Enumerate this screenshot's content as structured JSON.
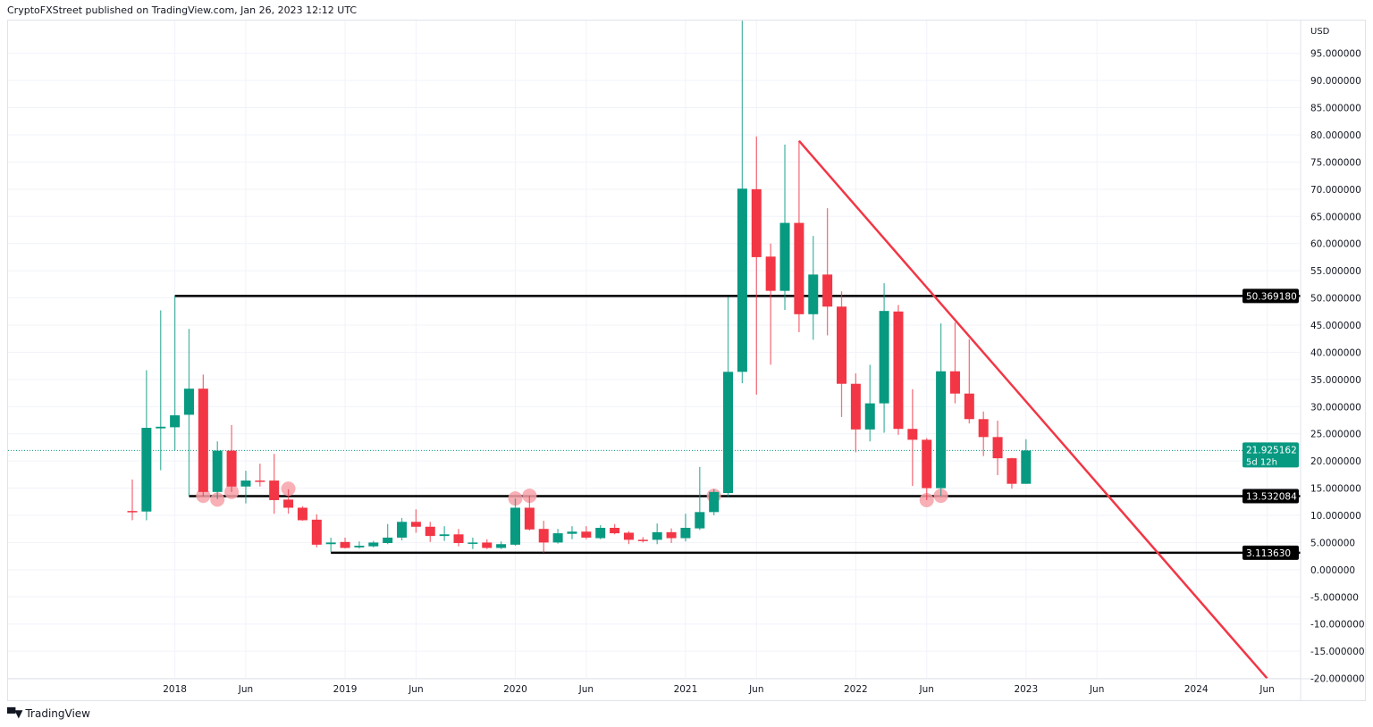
{
  "header": {
    "published": "CryptoFXStreet published on TradingView.com, Jan 26, 2023 12:12 UTC"
  },
  "footer": {
    "brand": "TradingView",
    "logo_icon": "tradingview-logo-icon"
  },
  "colors": {
    "up": "#089981",
    "down": "#f23645",
    "trendline": "#f23645",
    "levels": "#000000",
    "marker": "#f7a1a8",
    "grid": "#f0f3fa"
  },
  "chart_data": {
    "type": "candlestick",
    "interval": "monthly",
    "currency": "USD",
    "ylim": [
      -20,
      100
    ],
    "grid": true,
    "y_ticks": [
      "95.000000",
      "90.000000",
      "85.000000",
      "80.000000",
      "75.000000",
      "70.000000",
      "65.000000",
      "60.000000",
      "55.000000",
      "50.000000",
      "45.000000",
      "40.000000",
      "35.000000",
      "30.000000",
      "25.000000",
      "20.000000",
      "15.000000",
      "10.000000",
      "5.000000",
      "0.000000",
      "-5.000000",
      "-10.000000",
      "-15.000000",
      "-20.000000"
    ],
    "x_ticks": [
      {
        "date": "2018-01",
        "label": "2018"
      },
      {
        "date": "2018-06",
        "label": "Jun"
      },
      {
        "date": "2019-01",
        "label": "2019"
      },
      {
        "date": "2019-06",
        "label": "Jun"
      },
      {
        "date": "2020-01",
        "label": "2020"
      },
      {
        "date": "2020-06",
        "label": "Jun"
      },
      {
        "date": "2021-01",
        "label": "2021"
      },
      {
        "date": "2021-06",
        "label": "Jun"
      },
      {
        "date": "2022-01",
        "label": "2022"
      },
      {
        "date": "2022-06",
        "label": "Jun"
      },
      {
        "date": "2023-01",
        "label": "2023"
      },
      {
        "date": "2023-06",
        "label": "Jun"
      },
      {
        "date": "2024-01",
        "label": "2024"
      },
      {
        "date": "2024-06",
        "label": "Jun"
      }
    ],
    "candles_columns": [
      "date",
      "open",
      "high",
      "low",
      "close"
    ],
    "candles": [
      [
        "2017-10",
        10.8,
        16.6,
        9.1,
        10.7
      ],
      [
        "2017-11",
        10.7,
        36.7,
        9.1,
        26.1
      ],
      [
        "2017-12",
        26.0,
        47.7,
        18.3,
        26.3
      ],
      [
        "2018-01",
        26.2,
        50.4,
        22.0,
        28.4
      ],
      [
        "2018-02",
        28.5,
        44.3,
        13.5,
        33.3
      ],
      [
        "2018-03",
        33.3,
        35.9,
        13.5,
        14.3
      ],
      [
        "2018-04",
        14.3,
        23.6,
        13.0,
        21.9
      ],
      [
        "2018-05",
        21.9,
        26.6,
        14.3,
        15.3
      ],
      [
        "2018-06",
        15.3,
        18.2,
        12.2,
        16.4
      ],
      [
        "2018-07",
        16.4,
        19.5,
        15.3,
        16.3
      ],
      [
        "2018-08",
        16.4,
        21.3,
        10.3,
        12.8
      ],
      [
        "2018-09",
        12.9,
        14.8,
        10.3,
        11.4
      ],
      [
        "2018-10",
        11.4,
        11.7,
        9.0,
        9.1
      ],
      [
        "2018-11",
        9.2,
        10.2,
        4.1,
        4.6
      ],
      [
        "2018-12",
        4.7,
        5.9,
        3.3,
        5.0
      ],
      [
        "2019-01",
        5.1,
        5.9,
        3.9,
        4.0
      ],
      [
        "2019-02",
        4.1,
        5.2,
        3.9,
        4.4
      ],
      [
        "2019-03",
        4.3,
        5.3,
        4.1,
        5.0
      ],
      [
        "2019-04",
        4.9,
        8.4,
        4.7,
        5.9
      ],
      [
        "2019-05",
        5.9,
        9.5,
        5.4,
        8.8
      ],
      [
        "2019-06",
        8.8,
        11.1,
        6.8,
        7.9
      ],
      [
        "2019-07",
        7.9,
        8.8,
        5.1,
        6.2
      ],
      [
        "2019-08",
        6.2,
        8.0,
        5.3,
        6.5
      ],
      [
        "2019-09",
        6.5,
        7.5,
        4.3,
        4.9
      ],
      [
        "2019-10",
        4.9,
        5.9,
        3.8,
        5.0
      ],
      [
        "2019-11",
        5.0,
        5.6,
        3.8,
        4.0
      ],
      [
        "2019-12",
        4.0,
        5.2,
        3.8,
        4.7
      ],
      [
        "2020-01",
        4.6,
        13.1,
        4.4,
        11.4
      ],
      [
        "2020-02",
        11.4,
        13.6,
        7.2,
        7.4
      ],
      [
        "2020-03",
        7.5,
        9.0,
        3.1,
        5.0
      ],
      [
        "2020-04",
        5.0,
        7.5,
        4.8,
        6.7
      ],
      [
        "2020-05",
        6.6,
        8.0,
        5.6,
        7.0
      ],
      [
        "2020-06",
        7.0,
        8.0,
        5.6,
        5.9
      ],
      [
        "2020-07",
        5.8,
        8.2,
        5.6,
        7.7
      ],
      [
        "2020-08",
        7.7,
        8.4,
        6.5,
        6.7
      ],
      [
        "2020-09",
        6.8,
        7.1,
        4.7,
        5.5
      ],
      [
        "2020-10",
        5.5,
        6.0,
        5.0,
        5.4
      ],
      [
        "2020-11",
        5.5,
        8.5,
        4.7,
        6.9
      ],
      [
        "2020-12",
        6.9,
        7.6,
        4.9,
        5.8
      ],
      [
        "2021-01",
        5.8,
        10.3,
        5.2,
        7.7
      ],
      [
        "2021-02",
        7.6,
        18.9,
        7.3,
        10.6
      ],
      [
        "2021-03",
        10.6,
        14.8,
        10.0,
        14.3
      ],
      [
        "2021-04",
        14.1,
        50.2,
        13.5,
        36.4
      ],
      [
        "2021-05",
        36.4,
        101,
        34.3,
        70.1
      ],
      [
        "2021-06",
        70.0,
        79.7,
        32.2,
        57.5
      ],
      [
        "2021-07",
        57.6,
        60.0,
        37.7,
        51.3
      ],
      [
        "2021-08",
        51.3,
        78.2,
        47.8,
        63.8
      ],
      [
        "2021-09",
        63.8,
        78.9,
        43.7,
        47.0
      ],
      [
        "2021-10",
        47.0,
        61.4,
        42.3,
        54.3
      ],
      [
        "2021-11",
        54.3,
        66.5,
        43.1,
        48.4
      ],
      [
        "2021-12",
        48.4,
        51.2,
        28.1,
        34.2
      ],
      [
        "2022-01",
        34.2,
        36.1,
        21.6,
        25.8
      ],
      [
        "2022-02",
        25.8,
        37.7,
        23.6,
        30.6
      ],
      [
        "2022-03",
        30.6,
        52.7,
        25.2,
        47.6
      ],
      [
        "2022-04",
        47.5,
        48.7,
        24.8,
        25.9
      ],
      [
        "2022-05",
        25.9,
        33.2,
        15.4,
        23.9
      ],
      [
        "2022-06",
        23.9,
        24.2,
        12.8,
        15.0
      ],
      [
        "2022-07",
        15.0,
        45.3,
        13.6,
        36.5
      ],
      [
        "2022-08",
        36.5,
        45.5,
        30.6,
        32.4
      ],
      [
        "2022-09",
        32.4,
        42.4,
        26.9,
        27.7
      ],
      [
        "2022-10",
        27.7,
        29.1,
        20.9,
        24.4
      ],
      [
        "2022-11",
        24.4,
        27.4,
        17.4,
        20.5
      ],
      [
        "2022-12",
        20.5,
        20.6,
        14.9,
        15.8
      ],
      [
        "2023-01",
        15.8,
        24.0,
        15.8,
        21.925162
      ]
    ],
    "horizontal_levels": [
      {
        "start": "2018-01",
        "value": 50.36918,
        "label": "50.369180"
      },
      {
        "start": "2018-02",
        "value": 13.532084,
        "label": "13.532084"
      },
      {
        "start": "2018-12",
        "value": 3.11363,
        "label": "3.113630"
      }
    ],
    "trendline": {
      "start": [
        "2021-09",
        78.9
      ],
      "end": [
        "2024-06",
        -20
      ]
    },
    "markers": [
      [
        "2018-03",
        13.6
      ],
      [
        "2018-04",
        12.9
      ],
      [
        "2018-05",
        14.3
      ],
      [
        "2018-09",
        14.9
      ],
      [
        "2020-01",
        13.1
      ],
      [
        "2020-02",
        13.6
      ],
      [
        "2021-03",
        13.6
      ],
      [
        "2022-06",
        12.8
      ],
      [
        "2022-07",
        13.6
      ]
    ],
    "last_price": {
      "value": 21.925162,
      "label": "21.925162",
      "countdown": "5d 12h"
    }
  }
}
